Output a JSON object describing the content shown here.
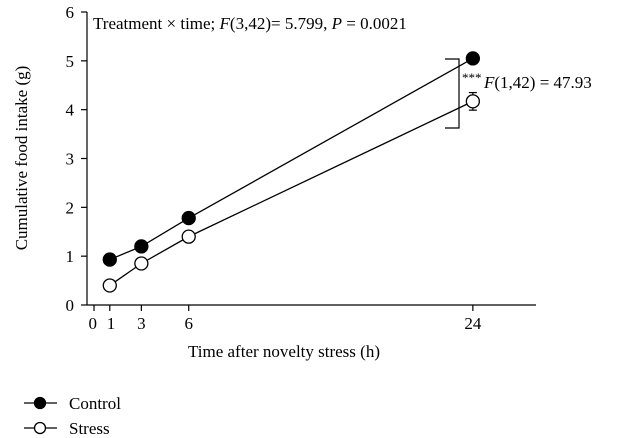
{
  "chart_data": {
    "type": "line",
    "title_parts": {
      "prefix": "Treatment × time; ",
      "stat_letter": "F",
      "stat_args": "(3,42)= 5.799, ",
      "p_letter": "P",
      "p_value": " = 0.0021"
    },
    "xlabel": "Time after novelty stress (h)",
    "ylabel": "Cumulative food intake (g)",
    "xlim": [
      0,
      28
    ],
    "ylim": [
      0,
      6
    ],
    "x_ticks": [
      0,
      1,
      3,
      6,
      24
    ],
    "y_ticks": [
      0,
      1,
      2,
      3,
      4,
      5,
      6
    ],
    "x": [
      1,
      3,
      6,
      24
    ],
    "series": [
      {
        "name": "Control",
        "marker": "filled-circle",
        "values": [
          0.93,
          1.2,
          1.78,
          5.05
        ],
        "errors": [
          0.05,
          0.05,
          0.05,
          0.07
        ]
      },
      {
        "name": "Stress",
        "marker": "open-circle",
        "values": [
          0.4,
          0.85,
          1.4,
          4.17
        ],
        "errors": [
          0.04,
          0.05,
          0.05,
          0.18
        ]
      }
    ],
    "annotation": {
      "stars": "***",
      "stat_letter": "F",
      "stat_text": "(1,42) = 47.93"
    },
    "legend_position": "bottom-left"
  }
}
